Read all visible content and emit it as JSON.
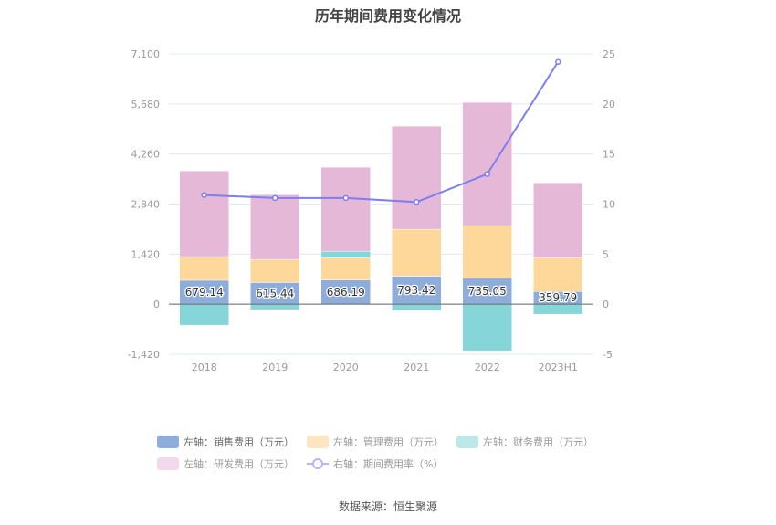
{
  "chart_data": {
    "type": "bar",
    "stacked": true,
    "title": "历年期间费用变化情况",
    "categories": [
      "2018",
      "2019",
      "2020",
      "2021",
      "2022",
      "2023H1"
    ],
    "left_axis": {
      "ylim": [
        -1420,
        7100
      ],
      "ticks": [
        "-1,420",
        "0",
        "1,420",
        "2,840",
        "4,260",
        "5,680",
        "7,100"
      ],
      "tick_values": [
        -1420,
        0,
        1420,
        2840,
        4260,
        5680,
        7100
      ]
    },
    "right_axis": {
      "ylim": [
        -5,
        25
      ],
      "ticks": [
        "-5",
        "0",
        "5",
        "10",
        "15",
        "20",
        "25"
      ],
      "tick_values": [
        -5,
        0,
        5,
        10,
        15,
        20,
        25
      ]
    },
    "series": [
      {
        "name": "左轴：销售费用（万元）",
        "type": "bar",
        "axis": "left",
        "color": "#8eaddb",
        "values": [
          679.14,
          615.44,
          686.19,
          793.42,
          735.05,
          359.79
        ],
        "labels": [
          "679.14",
          "615.44",
          "686.19",
          "793.42",
          "735.05",
          "359.79"
        ]
      },
      {
        "name": "左轴：管理费用（万元）",
        "type": "bar",
        "axis": "left",
        "color": "#fdd89a",
        "values": [
          668,
          654,
          635,
          1331,
          1492,
          961
        ]
      },
      {
        "name": "左轴：财务费用（万元）",
        "type": "bar",
        "axis": "left",
        "color": "#86d5d9",
        "values": [
          -596,
          -155,
          181,
          -181,
          -1321,
          -285
        ]
      },
      {
        "name": "左轴：研发费用（万元）",
        "type": "bar",
        "axis": "left",
        "color": "#e6b8d8",
        "values": [
          2435,
          1839,
          2383,
          2926,
          3497,
          2124
        ]
      },
      {
        "name": "右轴：期间费用率（%）",
        "type": "line",
        "axis": "right",
        "color": "#7b7ff0",
        "values": [
          10.9,
          10.6,
          10.6,
          10.2,
          13.0,
          24.2
        ]
      }
    ],
    "legend_position": "bottom",
    "grid": true
  },
  "legend": [
    {
      "label": "左轴：销售费用（万元）",
      "color": "#8eaddb",
      "kind": "box"
    },
    {
      "label": "左轴：管理费用（万元）",
      "color": "#fde5c0",
      "kind": "box"
    },
    {
      "label": "左轴：财务费用（万元）",
      "color": "#bde8ea",
      "kind": "box"
    },
    {
      "label": "左轴：研发费用（万元）",
      "color": "#f2d9ec",
      "kind": "box"
    },
    {
      "label": "右轴：期间费用率（%）",
      "color": "#b4b6f6",
      "kind": "line"
    }
  ],
  "source": "数据来源：恒生聚源"
}
